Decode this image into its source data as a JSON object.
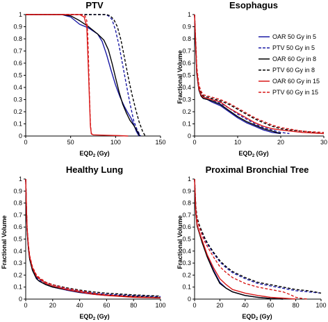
{
  "styles": {
    "OAR 50 Gy in 5": {
      "color": "#1a1aa6",
      "dash": "solid"
    },
    "PTV 50 Gy in 5": {
      "color": "#1a1aa6",
      "dash": "dashed"
    },
    "OAR 60 Gy in 8": {
      "color": "#000000",
      "dash": "solid"
    },
    "PTV 60 Gy in 8": {
      "color": "#000000",
      "dash": "dashed"
    },
    "OAR 60 Gy in 15": {
      "color": "#d81818",
      "dash": "solid"
    },
    "PTV 60 Gy in 15": {
      "color": "#d81818",
      "dash": "dashed"
    }
  },
  "chart_data": [
    {
      "type": "line",
      "title": "PTV",
      "xlabel": "EQD2 (Gy)",
      "ylabel": "",
      "xlim": [
        0,
        150
      ],
      "ylim": [
        0,
        1
      ],
      "xticks": [
        "0",
        "50",
        "100",
        "150"
      ],
      "yticks": [
        "0",
        "0.1",
        "0.2",
        "0.3",
        "0.4",
        "0.5",
        "0.6",
        "0.7",
        "0.8",
        "0.9",
        "1"
      ],
      "series": [
        {
          "name": "OAR 50 Gy in 5",
          "x": [
            0,
            40,
            50,
            60,
            70,
            80,
            85,
            90,
            95,
            100,
            105,
            110,
            113,
            117,
            120,
            123,
            126
          ],
          "y": [
            1,
            1,
            0.98,
            0.92,
            0.89,
            0.84,
            0.78,
            0.67,
            0.54,
            0.42,
            0.32,
            0.24,
            0.2,
            0.15,
            0.1,
            0.04,
            0
          ]
        },
        {
          "name": "PTV 50 Gy in 5",
          "x": [
            0,
            70,
            80,
            88,
            92,
            96,
            100,
            104,
            108,
            112,
            116,
            120,
            124,
            128
          ],
          "y": [
            1,
            1,
            1,
            1,
            0.99,
            0.96,
            0.87,
            0.74,
            0.58,
            0.42,
            0.27,
            0.13,
            0.05,
            0
          ]
        },
        {
          "name": "OAR 60 Gy in 8",
          "x": [
            0,
            40,
            50,
            60,
            70,
            80,
            87,
            92,
            96,
            100,
            104,
            108,
            112,
            116,
            120,
            124,
            127
          ],
          "y": [
            1,
            1,
            0.99,
            0.95,
            0.9,
            0.84,
            0.79,
            0.71,
            0.6,
            0.48,
            0.36,
            0.26,
            0.19,
            0.13,
            0.09,
            0.04,
            0
          ]
        },
        {
          "name": "PTV 60 Gy in 8",
          "x": [
            0,
            70,
            80,
            90,
            94,
            98,
            102,
            106,
            110,
            114,
            118,
            122,
            126,
            130,
            133
          ],
          "y": [
            1,
            1,
            1,
            1,
            0.99,
            0.96,
            0.9,
            0.79,
            0.64,
            0.49,
            0.35,
            0.23,
            0.12,
            0.04,
            0
          ]
        },
        {
          "name": "OAR 60 Gy in 15",
          "x": [
            0,
            60,
            65,
            68,
            70,
            72,
            73,
            75,
            90,
            105,
            114
          ],
          "y": [
            1,
            1,
            0.98,
            0.9,
            0.5,
            0.08,
            0.02,
            0.01,
            0.006,
            0.003,
            0
          ]
        },
        {
          "name": "PTV 60 Gy in 15",
          "x": [
            0,
            62,
            66,
            68,
            69,
            70,
            71,
            72,
            73,
            74
          ],
          "y": [
            1,
            1,
            0.99,
            0.95,
            0.85,
            0.6,
            0.32,
            0.1,
            0.02,
            0
          ]
        }
      ]
    },
    {
      "type": "line",
      "title": "Esophagus",
      "xlabel": "EQD2 (Gy)",
      "ylabel": "Fractional Volume",
      "xlim": [
        0,
        30
      ],
      "ylim": [
        0,
        1
      ],
      "xticks": [
        "0",
        "10",
        "20",
        "30"
      ],
      "yticks": [
        "0",
        "0.1",
        "0.2",
        "0.3",
        "0.4",
        "0.5",
        "0.6",
        "0.7",
        "0.8",
        "0.9",
        "1"
      ],
      "legend": "top-right",
      "series": [
        {
          "name": "OAR 50 Gy in 5",
          "x": [
            0,
            0.2,
            0.5,
            1,
            1.5,
            2,
            3,
            4,
            6,
            8,
            10,
            12,
            14,
            16,
            18,
            20
          ],
          "y": [
            1,
            0.8,
            0.52,
            0.38,
            0.33,
            0.31,
            0.3,
            0.28,
            0.25,
            0.2,
            0.15,
            0.11,
            0.08,
            0.05,
            0.03,
            0.02
          ]
        },
        {
          "name": "PTV 50 Gy in 5",
          "x": [
            0,
            0.2,
            0.5,
            1,
            1.5,
            2,
            3,
            4,
            6,
            8,
            10,
            12,
            14,
            16,
            18,
            20,
            22
          ],
          "y": [
            1,
            0.82,
            0.55,
            0.4,
            0.35,
            0.32,
            0.31,
            0.3,
            0.27,
            0.23,
            0.18,
            0.14,
            0.1,
            0.07,
            0.05,
            0.03,
            0.02
          ]
        },
        {
          "name": "OAR 60 Gy in 8",
          "x": [
            0,
            0.2,
            0.5,
            1,
            1.5,
            2,
            3,
            4,
            6,
            8,
            10,
            12,
            14,
            16,
            18,
            20
          ],
          "y": [
            1,
            0.8,
            0.52,
            0.38,
            0.33,
            0.31,
            0.3,
            0.29,
            0.26,
            0.21,
            0.16,
            0.12,
            0.09,
            0.06,
            0.04,
            0.02
          ]
        },
        {
          "name": "PTV 60 Gy in 8",
          "x": [
            0,
            0.2,
            0.5,
            1,
            1.5,
            2,
            3,
            4,
            6,
            8,
            10,
            12,
            14,
            16,
            18,
            20,
            22,
            25,
            30
          ],
          "y": [
            1,
            0.83,
            0.56,
            0.41,
            0.36,
            0.33,
            0.32,
            0.31,
            0.29,
            0.26,
            0.22,
            0.18,
            0.14,
            0.11,
            0.08,
            0.06,
            0.05,
            0.04,
            0.02
          ]
        },
        {
          "name": "OAR 60 Gy in 15",
          "x": [
            0,
            0.2,
            0.5,
            1,
            1.5,
            2,
            3,
            4,
            6,
            8,
            10,
            12,
            14,
            16,
            18,
            20,
            25,
            30
          ],
          "y": [
            1,
            0.82,
            0.54,
            0.39,
            0.34,
            0.32,
            0.31,
            0.3,
            0.28,
            0.23,
            0.19,
            0.15,
            0.11,
            0.08,
            0.06,
            0.05,
            0.03,
            0.02
          ]
        },
        {
          "name": "PTV 60 Gy in 15",
          "x": [
            0,
            0.2,
            0.5,
            1,
            1.5,
            2,
            3,
            4,
            6,
            8,
            10,
            12,
            14,
            16,
            18,
            20,
            25,
            30
          ],
          "y": [
            1,
            0.84,
            0.57,
            0.42,
            0.37,
            0.34,
            0.33,
            0.32,
            0.3,
            0.27,
            0.23,
            0.19,
            0.15,
            0.12,
            0.09,
            0.07,
            0.04,
            0.03
          ]
        }
      ]
    },
    {
      "type": "line",
      "title": "Healthy Lung",
      "xlabel": "EQD2 (Gy)",
      "ylabel": "Fractional Volume",
      "xlim": [
        0,
        100
      ],
      "ylim": [
        0,
        1
      ],
      "xticks": [
        "0",
        "20",
        "40",
        "60",
        "80",
        "100"
      ],
      "yticks": [
        "0",
        "0.1",
        "0.2",
        "0.3",
        "0.4",
        "0.5",
        "0.6",
        "0.7",
        "0.8",
        "0.9",
        "1"
      ],
      "series": [
        {
          "name": "OAR 50 Gy in 5",
          "x": [
            0,
            0.5,
            1,
            2,
            3,
            5,
            8,
            10,
            15,
            20,
            30,
            40,
            50,
            60,
            80,
            100
          ],
          "y": [
            1,
            0.75,
            0.58,
            0.42,
            0.33,
            0.24,
            0.17,
            0.15,
            0.12,
            0.1,
            0.075,
            0.055,
            0.04,
            0.03,
            0.02,
            0.01
          ]
        },
        {
          "name": "PTV 50 Gy in 5",
          "x": [
            0,
            0.5,
            1,
            2,
            3,
            5,
            8,
            10,
            15,
            20,
            30,
            40,
            50,
            60,
            80,
            100
          ],
          "y": [
            1,
            0.76,
            0.59,
            0.43,
            0.34,
            0.25,
            0.18,
            0.16,
            0.13,
            0.11,
            0.085,
            0.065,
            0.05,
            0.04,
            0.03,
            0.02
          ]
        },
        {
          "name": "OAR 60 Gy in 8",
          "x": [
            0,
            0.5,
            1,
            2,
            3,
            5,
            8,
            10,
            15,
            20,
            30,
            40,
            50,
            60,
            80,
            100
          ],
          "y": [
            1,
            0.75,
            0.58,
            0.42,
            0.33,
            0.24,
            0.17,
            0.15,
            0.12,
            0.1,
            0.078,
            0.058,
            0.042,
            0.032,
            0.022,
            0.012
          ]
        },
        {
          "name": "PTV 60 Gy in 8",
          "x": [
            0,
            0.5,
            1,
            2,
            3,
            5,
            8,
            10,
            15,
            20,
            30,
            40,
            50,
            60,
            80,
            100
          ],
          "y": [
            1,
            0.77,
            0.6,
            0.44,
            0.35,
            0.26,
            0.19,
            0.17,
            0.14,
            0.12,
            0.095,
            0.075,
            0.06,
            0.05,
            0.035,
            0.025
          ]
        },
        {
          "name": "OAR 60 Gy in 15",
          "x": [
            0,
            0.5,
            1,
            2,
            3,
            5,
            8,
            10,
            15,
            20,
            30,
            40,
            50,
            60,
            80,
            100
          ],
          "y": [
            1,
            0.77,
            0.6,
            0.44,
            0.35,
            0.26,
            0.19,
            0.17,
            0.13,
            0.11,
            0.08,
            0.06,
            0.04,
            0.03,
            0.015,
            0.01
          ]
        },
        {
          "name": "PTV 60 Gy in 15",
          "x": [
            0,
            0.5,
            1,
            2,
            3,
            5,
            8,
            10,
            15,
            20,
            30,
            40,
            50,
            60,
            80,
            100
          ],
          "y": [
            1,
            0.78,
            0.61,
            0.45,
            0.36,
            0.27,
            0.2,
            0.18,
            0.14,
            0.12,
            0.09,
            0.07,
            0.05,
            0.035,
            0.02,
            0.01
          ]
        }
      ]
    },
    {
      "type": "line",
      "title": "Proximal Bronchial Tree",
      "xlabel": "EQD2 (Gy)",
      "ylabel": "Fractional Volume",
      "xlim": [
        0,
        100
      ],
      "ylim": [
        0,
        1
      ],
      "xticks": [
        "0",
        "20",
        "40",
        "60",
        "80",
        "100"
      ],
      "yticks": [
        "0",
        "0.1",
        "0.2",
        "0.3",
        "0.4",
        "0.5",
        "0.6",
        "0.7",
        "0.8",
        "0.9",
        "1"
      ],
      "series": [
        {
          "name": "OAR 50 Gy in 5",
          "x": [
            0,
            1,
            2,
            4,
            6,
            8,
            10,
            15,
            20,
            25,
            30,
            40,
            50,
            60,
            70
          ],
          "y": [
            1,
            0.72,
            0.62,
            0.55,
            0.48,
            0.42,
            0.36,
            0.24,
            0.14,
            0.09,
            0.06,
            0.03,
            0.015,
            0.005,
            0
          ]
        },
        {
          "name": "PTV 50 Gy in 5",
          "x": [
            0,
            1,
            2,
            4,
            6,
            8,
            10,
            15,
            20,
            25,
            30,
            40,
            50,
            60,
            70,
            80,
            90,
            100
          ],
          "y": [
            1,
            0.76,
            0.67,
            0.6,
            0.55,
            0.5,
            0.46,
            0.38,
            0.31,
            0.26,
            0.22,
            0.17,
            0.13,
            0.11,
            0.09,
            0.07,
            0.06,
            0.05
          ]
        },
        {
          "name": "OAR 60 Gy in 8",
          "x": [
            0,
            1,
            2,
            4,
            6,
            8,
            10,
            15,
            20,
            25,
            30,
            40,
            50,
            60,
            70
          ],
          "y": [
            1,
            0.71,
            0.61,
            0.54,
            0.47,
            0.41,
            0.35,
            0.23,
            0.13,
            0.09,
            0.06,
            0.03,
            0.015,
            0.005,
            0
          ]
        },
        {
          "name": "PTV 60 Gy in 8",
          "x": [
            0,
            1,
            2,
            4,
            6,
            8,
            10,
            15,
            20,
            25,
            30,
            40,
            50,
            60,
            70,
            80,
            90,
            100
          ],
          "y": [
            1,
            0.77,
            0.68,
            0.61,
            0.56,
            0.51,
            0.47,
            0.39,
            0.32,
            0.27,
            0.23,
            0.18,
            0.14,
            0.12,
            0.1,
            0.08,
            0.07,
            0.05
          ]
        },
        {
          "name": "OAR 60 Gy in 15",
          "x": [
            0,
            1,
            2,
            4,
            6,
            8,
            10,
            15,
            20,
            25,
            30,
            40,
            50,
            60,
            70,
            80
          ],
          "y": [
            1,
            0.72,
            0.62,
            0.55,
            0.49,
            0.43,
            0.37,
            0.26,
            0.17,
            0.12,
            0.08,
            0.05,
            0.03,
            0.015,
            0.008,
            0
          ]
        },
        {
          "name": "PTV 60 Gy in 15",
          "x": [
            0,
            1,
            2,
            4,
            6,
            8,
            10,
            15,
            20,
            25,
            30,
            40,
            50,
            60,
            70,
            75,
            80,
            85,
            90
          ],
          "y": [
            1,
            0.75,
            0.66,
            0.59,
            0.53,
            0.48,
            0.44,
            0.35,
            0.27,
            0.22,
            0.18,
            0.13,
            0.1,
            0.08,
            0.06,
            0.04,
            0.015,
            0.005,
            0
          ]
        }
      ]
    }
  ]
}
